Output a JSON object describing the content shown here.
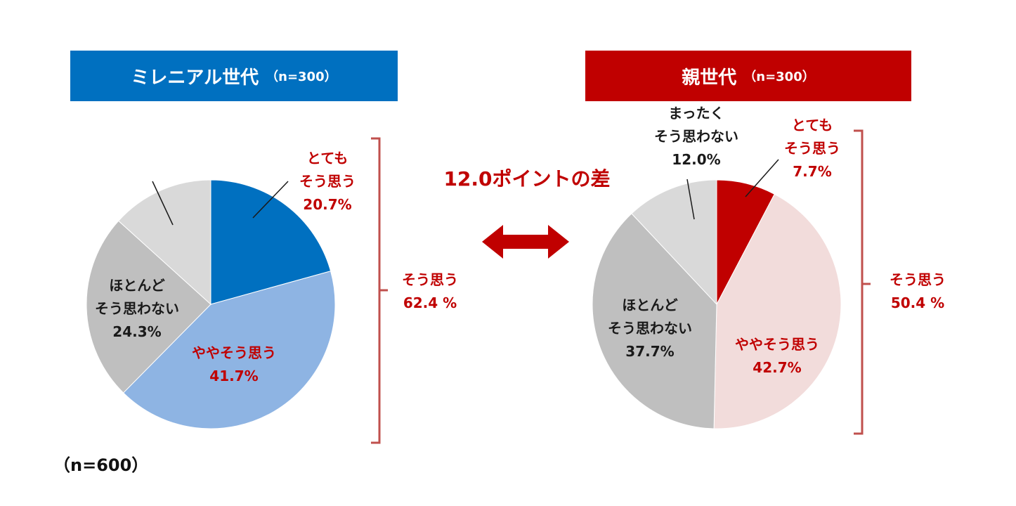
{
  "left": {
    "title": "ミレニアル世代",
    "n_label": "（n=300）",
    "summary": {
      "label": "そう思う",
      "value": "62.4 %"
    }
  },
  "right": {
    "title": "親世代",
    "n_label": "（n=300）",
    "summary": {
      "label": "そう思う",
      "value": "50.4 %"
    }
  },
  "difference_label": "12.0ポイントの差",
  "sample_note": "（n=600）",
  "colors": {
    "left_strong": "#0070c0",
    "left_light": "#8eb4e3",
    "right_strong": "#c00000",
    "right_light": "#f2dcdb",
    "gray_dark": "#bfbfbf",
    "gray_light": "#d9d9d9",
    "label_red": "#c00000",
    "label_dark": "#1a1a1a"
  },
  "chart_data": [
    {
      "type": "pie",
      "title": "ミレニアル世代",
      "slices": [
        {
          "label_lines": [
            "とても",
            "そう思う"
          ],
          "value": 20.7,
          "value_text": "20.7%",
          "color": "#0070c0"
        },
        {
          "label_lines": [
            "ややそう思う"
          ],
          "value": 41.7,
          "value_text": "41.7%",
          "color": "#8eb4e3"
        },
        {
          "label_lines": [
            "ほとんど",
            "そう思わない"
          ],
          "value": 24.3,
          "value_text": "24.3%",
          "color": "#bfbfbf"
        },
        {
          "label_lines": [],
          "value": 13.3,
          "value_text": "",
          "color": "#d9d9d9"
        }
      ]
    },
    {
      "type": "pie",
      "title": "親世代",
      "slices": [
        {
          "label_lines": [
            "とても",
            "そう思う"
          ],
          "value": 7.7,
          "value_text": "7.7%",
          "color": "#c00000"
        },
        {
          "label_lines": [
            "ややそう思う"
          ],
          "value": 42.7,
          "value_text": "42.7%",
          "color": "#f2dcdb"
        },
        {
          "label_lines": [
            "ほとんど",
            "そう思わない"
          ],
          "value": 37.7,
          "value_text": "37.7%",
          "color": "#bfbfbf"
        },
        {
          "label_lines": [
            "まったく",
            "そう思わない"
          ],
          "value": 12.0,
          "value_text": "12.0%",
          "color": "#d9d9d9"
        }
      ]
    }
  ]
}
